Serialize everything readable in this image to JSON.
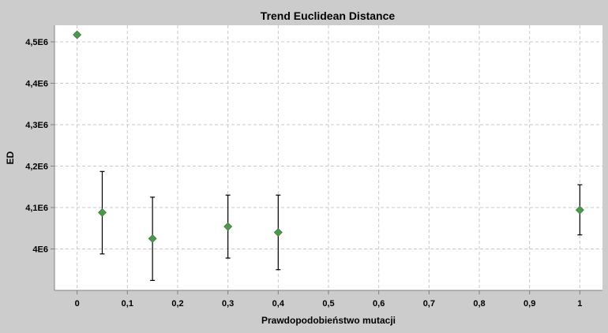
{
  "chart_data": {
    "type": "scatter",
    "title": "Trend Euclidean Distance",
    "xlabel": "Prawdopodobieństwo mutacji",
    "ylabel": "ED",
    "xlim": [
      -0.045,
      1.045
    ],
    "ylim": [
      3900000,
      4540000
    ],
    "x_ticks": [
      0,
      0.1,
      0.2,
      0.3,
      0.4,
      0.5,
      0.6,
      0.7,
      0.8,
      0.9,
      1
    ],
    "x_tick_labels": [
      "0",
      "0,1",
      "0,2",
      "0,3",
      "0,4",
      "0,5",
      "0,6",
      "0,7",
      "0,8",
      "0,9",
      "1"
    ],
    "y_ticks": [
      4000000,
      4100000,
      4200000,
      4300000,
      4400000,
      4500000
    ],
    "y_tick_labels": [
      "4E6",
      "4,1E6",
      "4,2E6",
      "4,3E6",
      "4,4E6",
      "4,5E6"
    ],
    "grid": true,
    "points": [
      {
        "x": 0,
        "y": 4517000,
        "low": 4513000,
        "high": 4521000
      },
      {
        "x": 0.05,
        "y": 4088000,
        "low": 3988000,
        "high": 4187000
      },
      {
        "x": 0.15,
        "y": 4025000,
        "low": 3924000,
        "high": 4125000
      },
      {
        "x": 0.3,
        "y": 4054000,
        "low": 3978000,
        "high": 4130000
      },
      {
        "x": 0.4,
        "y": 4040000,
        "low": 3950000,
        "high": 4130000
      },
      {
        "x": 1,
        "y": 4094000,
        "low": 4034000,
        "high": 4155000
      }
    ],
    "colors": {
      "background": "#cccccc",
      "plot_background": "#ffffff",
      "marker": "#4a9a4a",
      "error_bar": "#000000"
    }
  }
}
